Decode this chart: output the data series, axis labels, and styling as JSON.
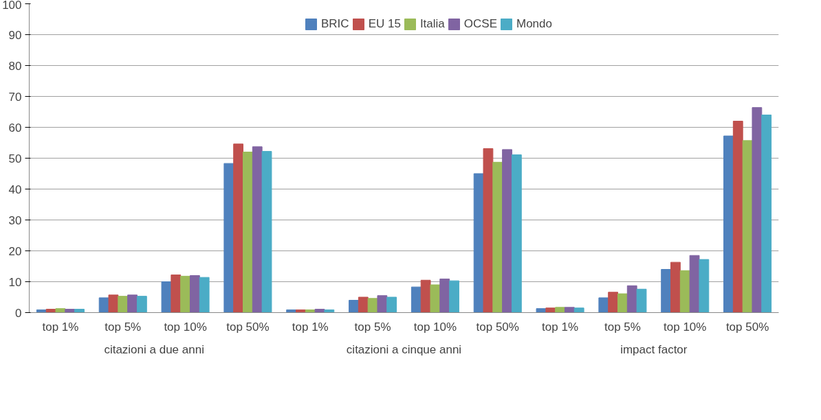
{
  "chart_data": {
    "type": "bar",
    "categories": [
      "top 1%",
      "top 5%",
      "top 10%",
      "top 50%",
      "top 1%",
      "top 5%",
      "top 10%",
      "top 50%",
      "top 1%",
      "top 5%",
      "top 10%",
      "top 50%"
    ],
    "annotations": [
      "citazioni a due anni",
      "citazioni a cinque anni",
      "impact factor"
    ],
    "series": [
      {
        "name": "BRIC",
        "color": "#4f81bd",
        "values": [
          0.9,
          4.8,
          10.0,
          48.3,
          0.9,
          4.0,
          8.3,
          45.0,
          1.3,
          4.8,
          14.0,
          57.2
        ]
      },
      {
        "name": "EU 15",
        "color": "#c0504d",
        "values": [
          1.1,
          5.7,
          12.2,
          54.6,
          0.9,
          5.0,
          10.5,
          53.1,
          1.5,
          6.6,
          16.3,
          62.0
        ]
      },
      {
        "name": "Italia",
        "color": "#9bbb59",
        "values": [
          1.3,
          5.3,
          11.8,
          52.0,
          0.9,
          4.6,
          9.0,
          48.7,
          1.7,
          6.1,
          13.6,
          55.7
        ]
      },
      {
        "name": "OCSE",
        "color": "#8064a2",
        "values": [
          1.1,
          5.7,
          12.0,
          53.7,
          1.1,
          5.5,
          10.9,
          52.8,
          1.7,
          8.7,
          18.5,
          66.4
        ]
      },
      {
        "name": "Mondo",
        "color": "#4bacc6",
        "values": [
          1.1,
          5.3,
          11.4,
          52.2,
          0.9,
          5.0,
          10.3,
          51.1,
          1.5,
          7.6,
          17.2,
          64.0
        ]
      }
    ],
    "ylim": [
      0,
      100
    ],
    "yticks": [
      0,
      10,
      20,
      30,
      40,
      50,
      60,
      70,
      80,
      90,
      100
    ],
    "grid": "y",
    "legend": "top"
  }
}
